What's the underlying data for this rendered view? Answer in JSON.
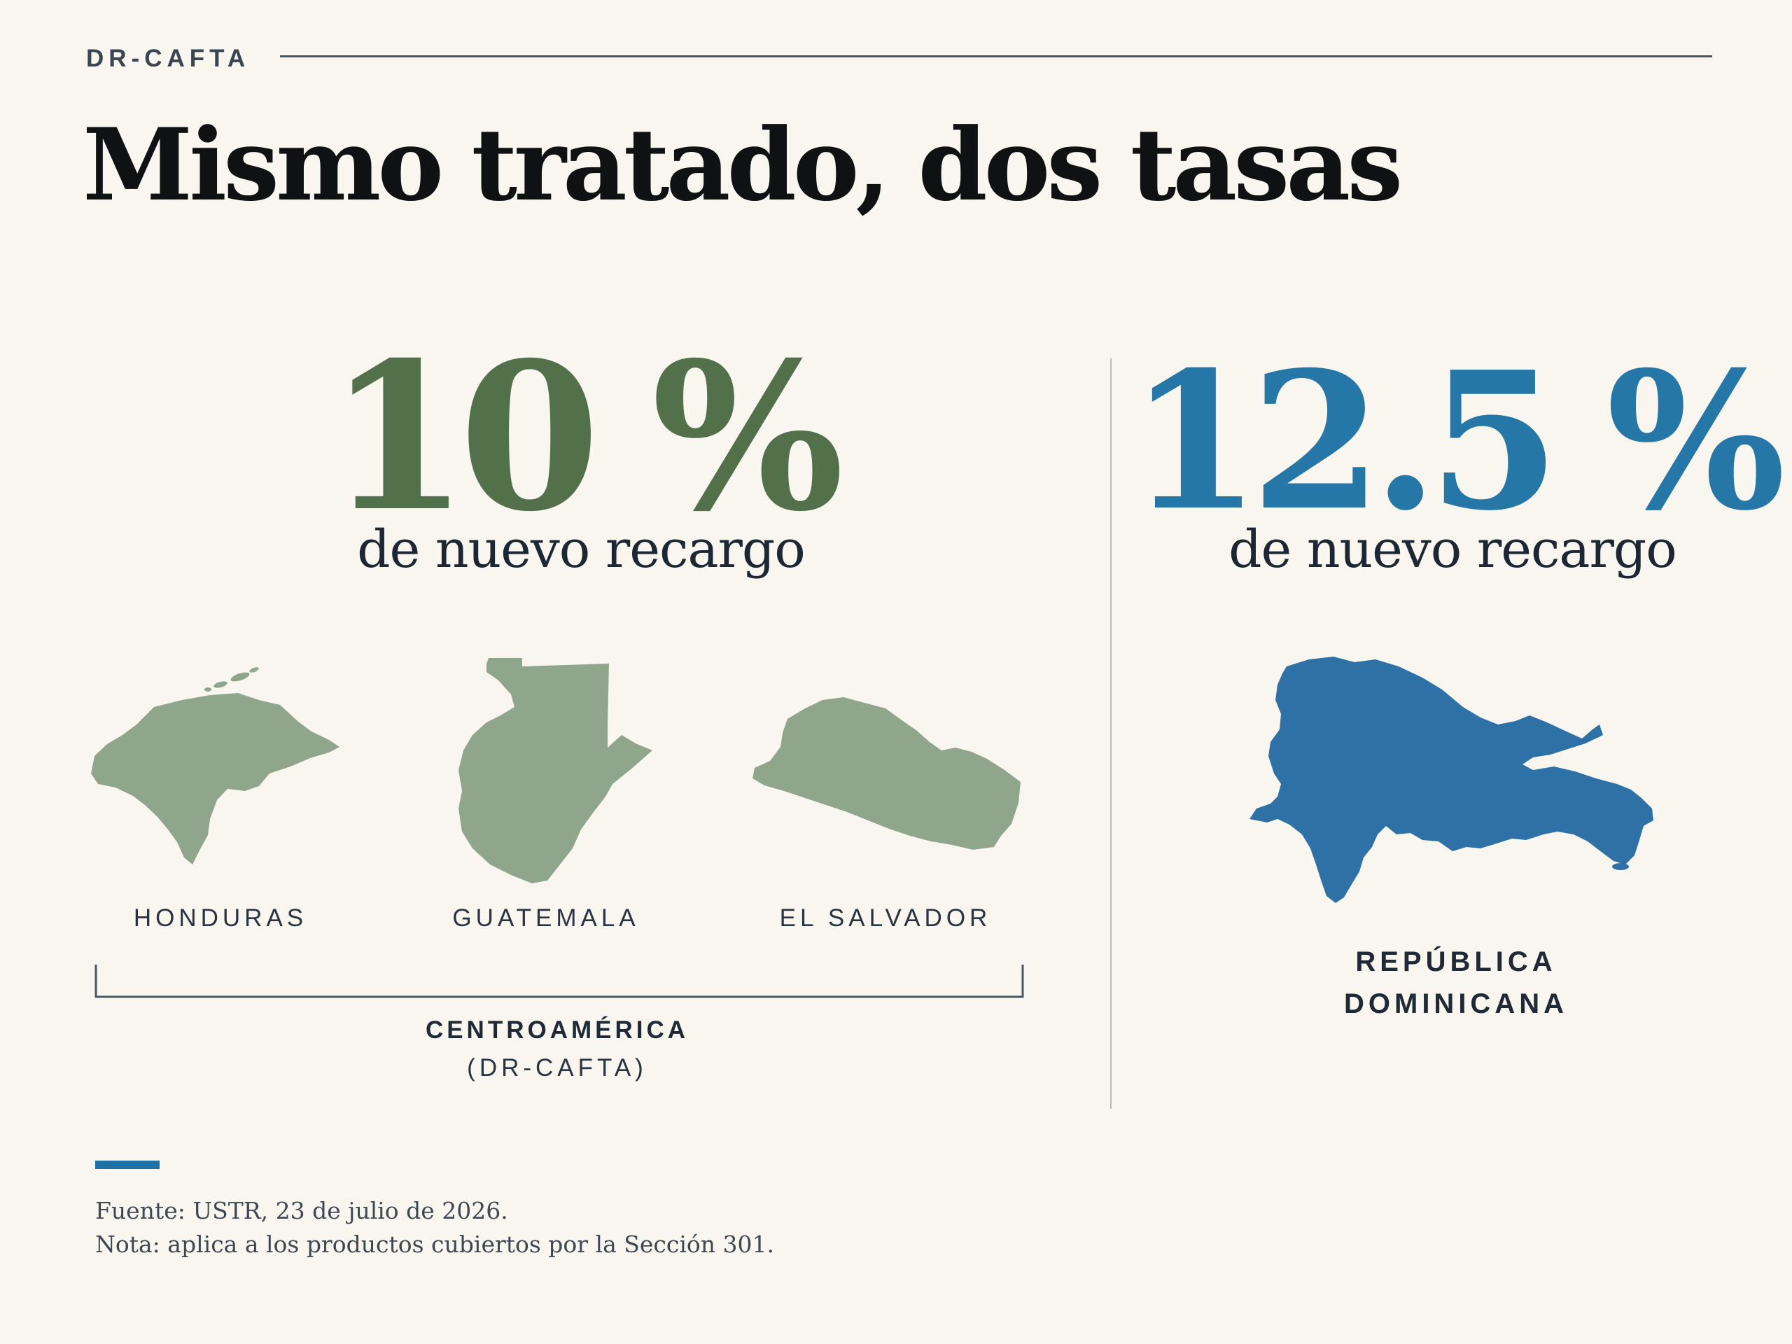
{
  "header": {
    "kicker": "DR-CAFTA",
    "title": "Mismo tratado, dos tasas"
  },
  "left": {
    "rate": "10 %",
    "rate_value": 10,
    "subtitle": "de nuevo recargo",
    "countries": [
      {
        "name": "HONDURAS"
      },
      {
        "name": "GUATEMALA"
      },
      {
        "name": "EL SALVADOR"
      }
    ],
    "region_name": "CENTROAMÉRICA",
    "region_sub": "(DR-CAFTA)",
    "color": "#527049",
    "map_color": "#90a68c"
  },
  "right": {
    "rate": "12.5 %",
    "rate_value": 12.5,
    "subtitle": "de nuevo recargo",
    "country_line1": "REPÚBLICA",
    "country_line2": "DOMINICANA",
    "color": "#2577a8",
    "map_color": "#2d71a6"
  },
  "footer": {
    "source": "Fuente: USTR, 23 de julio de 2026.",
    "note": "Nota: aplica a los productos cubiertos por la Sección 301."
  }
}
